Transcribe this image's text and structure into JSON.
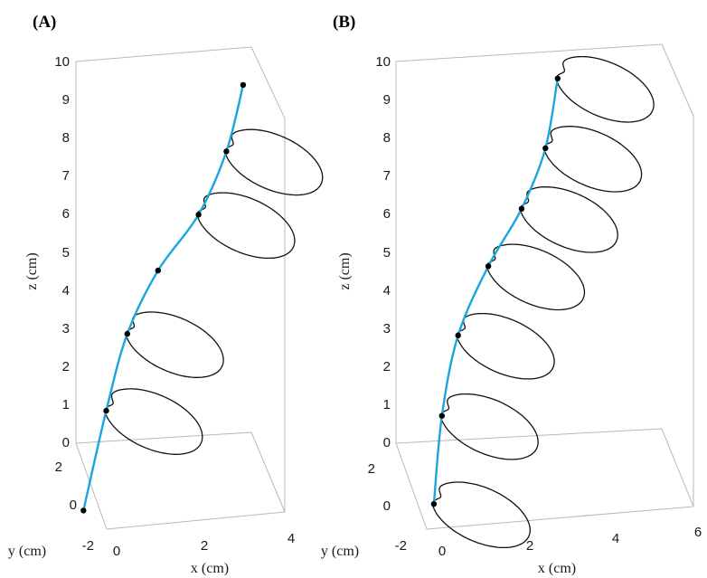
{
  "colors": {
    "curve": "#1aa6dd",
    "rings": "#111111",
    "dots": "#000000",
    "box": "#b8b8b8"
  },
  "chart_data": [
    {
      "type": "line",
      "panel": "(A)",
      "grid": false,
      "xlabel": "x (cm)",
      "ylabel": "y (cm)",
      "zlabel": "z (cm)",
      "xlim": [
        -1,
        4
      ],
      "ylim": [
        -2,
        3
      ],
      "zlim": [
        0,
        10
      ],
      "xticks": [
        "0",
        "2",
        "4"
      ],
      "yticks": [
        "-2",
        "0",
        "2"
      ],
      "zticks": [
        "0",
        "1",
        "2",
        "3",
        "4",
        "5",
        "6",
        "7",
        "8",
        "9",
        "10"
      ],
      "centerline": [
        {
          "x": -0.9,
          "y": -0.7,
          "z": 0.0
        },
        {
          "x": -0.1,
          "y": 0.9,
          "z": 1.7
        },
        {
          "x": 0.45,
          "y": 1.3,
          "z": 3.45
        },
        {
          "x": 1.1,
          "y": 1.0,
          "z": 5.2
        },
        {
          "x": 1.9,
          "y": 0.3,
          "z": 6.95
        },
        {
          "x": 2.5,
          "y": 0.1,
          "z": 8.65
        },
        {
          "x": 2.9,
          "y": 0.2,
          "z": 10.3
        }
      ],
      "rings": [
        {
          "x": -0.1,
          "y": 0.9,
          "z": 1.7
        },
        {
          "x": 0.45,
          "y": 1.3,
          "z": 3.45
        },
        {
          "x": 1.9,
          "y": 0.3,
          "z": 6.95
        },
        {
          "x": 2.5,
          "y": 0.1,
          "z": 8.65
        }
      ]
    },
    {
      "type": "line",
      "panel": "(B)",
      "grid": false,
      "xlabel": "x (cm)",
      "ylabel": "y (cm)",
      "zlabel": "z (cm)",
      "xlim": [
        -1,
        6
      ],
      "ylim": [
        -2,
        3
      ],
      "zlim": [
        0,
        10
      ],
      "xticks": [
        "0",
        "2",
        "4",
        "6"
      ],
      "yticks": [
        "-2",
        "0",
        "2"
      ],
      "zticks": [
        "0",
        "1",
        "2",
        "3",
        "4",
        "5",
        "6",
        "7",
        "8",
        "9",
        "10"
      ],
      "centerline": [
        {
          "x": -0.3,
          "y": -0.5,
          "z": 0.0
        },
        {
          "x": 0.1,
          "y": 0.7,
          "z": 1.65
        },
        {
          "x": 0.6,
          "y": 1.4,
          "z": 3.35
        },
        {
          "x": 1.3,
          "y": 1.4,
          "z": 5.1
        },
        {
          "x": 2.0,
          "y": 1.0,
          "z": 6.75
        },
        {
          "x": 2.5,
          "y": 0.7,
          "z": 8.45
        },
        {
          "x": 2.8,
          "y": 0.8,
          "z": 10.2
        }
      ],
      "rings": [
        {
          "x": -0.3,
          "y": -0.5,
          "z": 0.0
        },
        {
          "x": 0.1,
          "y": 0.7,
          "z": 1.65
        },
        {
          "x": 0.6,
          "y": 1.4,
          "z": 3.35
        },
        {
          "x": 1.3,
          "y": 1.4,
          "z": 5.1
        },
        {
          "x": 2.0,
          "y": 1.0,
          "z": 6.75
        },
        {
          "x": 2.5,
          "y": 0.7,
          "z": 8.45
        },
        {
          "x": 2.8,
          "y": 0.8,
          "z": 10.2
        }
      ]
    }
  ]
}
